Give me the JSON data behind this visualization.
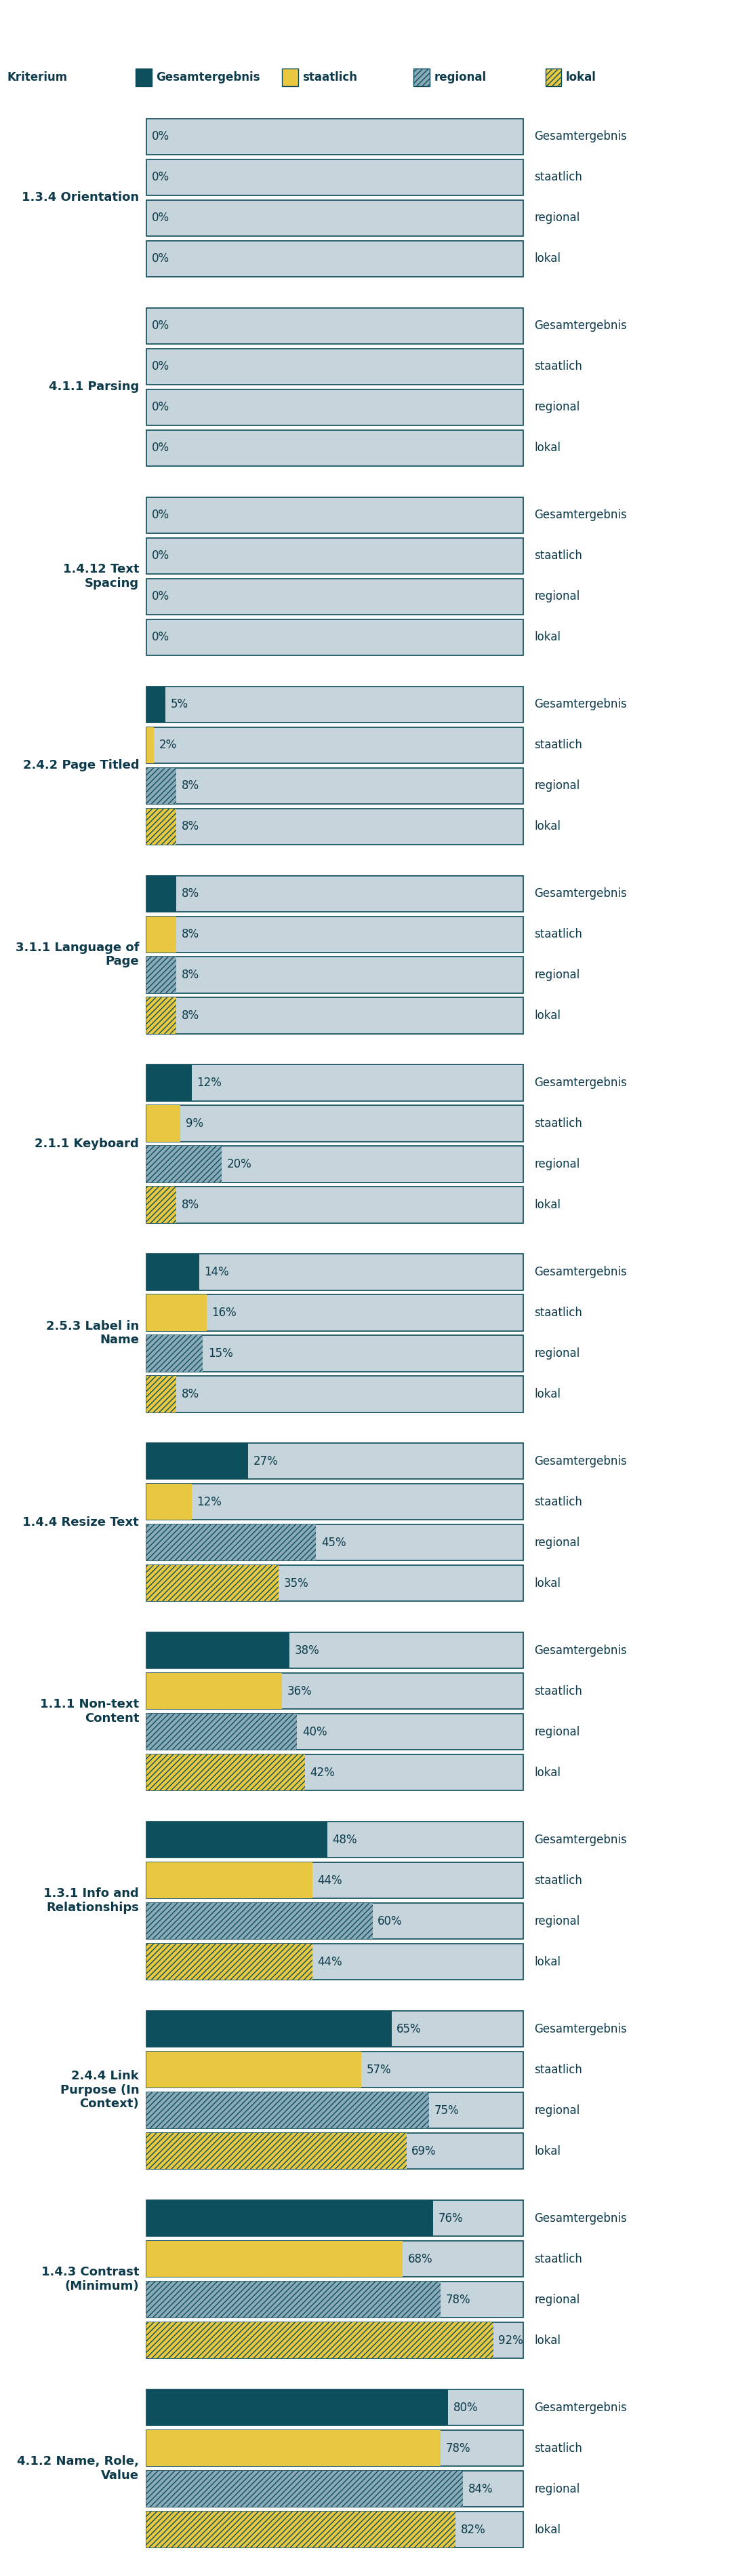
{
  "criteria": [
    {
      "label": "1.3.4 Orientation",
      "values": [
        0,
        0,
        0,
        0
      ]
    },
    {
      "label": "4.1.1 Parsing",
      "values": [
        0,
        0,
        0,
        0
      ]
    },
    {
      "label": "1.4.12 Text\nSpacing",
      "values": [
        0,
        0,
        0,
        0
      ]
    },
    {
      "label": "2.4.2 Page Titled",
      "values": [
        5,
        2,
        8,
        8
      ]
    },
    {
      "label": "3.1.1 Language of\nPage",
      "values": [
        8,
        8,
        8,
        8
      ]
    },
    {
      "label": "2.1.1 Keyboard",
      "values": [
        12,
        9,
        20,
        8
      ]
    },
    {
      "label": "2.5.3 Label in\nName",
      "values": [
        14,
        16,
        15,
        8
      ]
    },
    {
      "label": "1.4.4 Resize Text",
      "values": [
        27,
        12,
        45,
        35
      ]
    },
    {
      "label": "1.1.1 Non-text\nContent",
      "values": [
        38,
        36,
        40,
        42
      ]
    },
    {
      "label": "1.3.1 Info and\nRelationships",
      "values": [
        48,
        44,
        60,
        44
      ]
    },
    {
      "label": "2.4.4 Link\nPurpose (In\nContext)",
      "values": [
        65,
        57,
        75,
        69
      ]
    },
    {
      "label": "1.4.3 Contrast\n(Minimum)",
      "values": [
        76,
        68,
        78,
        92
      ]
    },
    {
      "label": "4.1.2 Name, Role,\nValue",
      "values": [
        80,
        78,
        84,
        82
      ]
    }
  ],
  "bar_types": [
    "Gesamtergebnis",
    "staatlich",
    "regional",
    "lokal"
  ],
  "dark_teal": "#0d4f5c",
  "yellow": "#e8c840",
  "gray_blue": "#8aaab8",
  "bar_bg_color": "#c5d5db",
  "border_col": "#0d4a5a",
  "text_dark": "#0d3a4a",
  "figure_bg": "#ffffff",
  "label_fontsize": 13,
  "value_fontsize": 12,
  "legend_fontsize": 12,
  "max_value": 100
}
